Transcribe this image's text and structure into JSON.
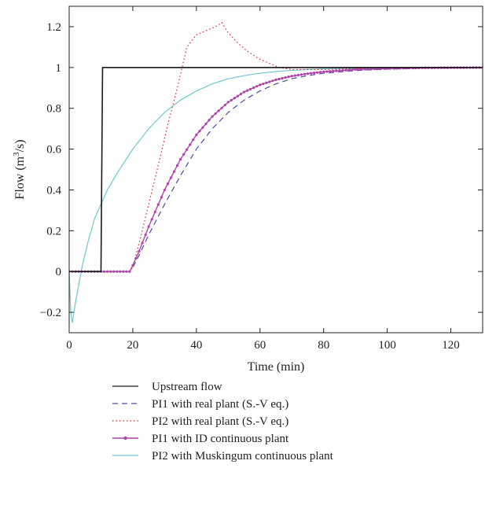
{
  "chart_data": {
    "type": "line",
    "title": "",
    "xlabel": "Time (min)",
    "ylabel_main": "Flow (m",
    "ylabel_sup": "3",
    "ylabel_end": "/s)",
    "xlim": [
      0,
      130
    ],
    "ylim": [
      -0.3,
      1.3
    ],
    "xticks": [
      0,
      20,
      40,
      60,
      80,
      100,
      120
    ],
    "yticks": [
      -0.2,
      0,
      0.2,
      0.4,
      0.6,
      0.8,
      1,
      1.2
    ],
    "xtick_labels": [
      "0",
      "20",
      "40",
      "60",
      "80",
      "100",
      "120"
    ],
    "ytick_labels": [
      "−0.2",
      "0",
      "0.2",
      "0.4",
      "0.6",
      "0.8",
      "1",
      "1.2"
    ],
    "grid": false,
    "legend_position": "below",
    "series": [
      {
        "name": "Upstream flow",
        "color": "#1a1a1a",
        "style": "solid",
        "x": [
          0,
          10,
          10.5,
          130
        ],
        "y": [
          0,
          0,
          1,
          1
        ]
      },
      {
        "name": "PI1 with real plant (S.-V eq.)",
        "color": "#4b4ba8",
        "style": "dashed",
        "x": [
          0,
          19,
          20,
          22,
          25,
          30,
          35,
          40,
          45,
          50,
          55,
          60,
          65,
          70,
          75,
          80,
          90,
          100,
          110,
          120,
          130
        ],
        "y": [
          0,
          0,
          0.02,
          0.08,
          0.18,
          0.33,
          0.47,
          0.6,
          0.7,
          0.78,
          0.84,
          0.885,
          0.92,
          0.945,
          0.96,
          0.972,
          0.985,
          0.992,
          0.996,
          0.998,
          0.999
        ]
      },
      {
        "name": "PI2 with real plant (S.-V eq.)",
        "color": "#e0282a",
        "style": "dotted",
        "x": [
          0,
          19,
          20,
          22,
          25,
          28,
          31,
          34,
          37,
          40,
          43,
          46,
          48,
          50,
          53,
          56,
          60,
          63,
          66,
          70,
          80,
          90,
          100,
          110,
          120,
          130
        ],
        "y": [
          0,
          0,
          0.02,
          0.14,
          0.33,
          0.52,
          0.72,
          0.9,
          1.1,
          1.16,
          1.18,
          1.2,
          1.22,
          1.17,
          1.12,
          1.08,
          1.04,
          1.02,
          1.0,
          0.99,
          0.99,
          0.995,
          0.998,
          0.999,
          1.0,
          1.0
        ]
      },
      {
        "name": "PI1 with ID continuous plant",
        "color": "#b044a8",
        "style": "solid-markers",
        "x": [
          0,
          19,
          20,
          22,
          25,
          30,
          35,
          40,
          45,
          50,
          55,
          60,
          65,
          70,
          75,
          80,
          90,
          100,
          110,
          120,
          130
        ],
        "y": [
          0,
          0,
          0.03,
          0.1,
          0.22,
          0.4,
          0.55,
          0.67,
          0.76,
          0.83,
          0.88,
          0.915,
          0.94,
          0.958,
          0.97,
          0.979,
          0.99,
          0.995,
          0.998,
          0.999,
          1.0
        ]
      },
      {
        "name": "PI2 with Muskingum continuous plant",
        "color": "#6ec8d2",
        "style": "solid",
        "x": [
          0,
          0.5,
          1,
          2,
          4,
          6,
          8,
          10,
          12,
          15,
          20,
          25,
          30,
          35,
          40,
          45,
          50,
          55,
          60,
          65,
          70,
          75,
          80,
          90,
          100,
          110,
          120,
          130
        ],
        "y": [
          0,
          -0.2,
          -0.25,
          -0.15,
          0.02,
          0.15,
          0.26,
          0.33,
          0.4,
          0.48,
          0.6,
          0.7,
          0.78,
          0.84,
          0.885,
          0.92,
          0.945,
          0.96,
          0.972,
          0.98,
          0.986,
          0.99,
          0.993,
          0.996,
          0.998,
          0.999,
          1.0,
          1.0
        ]
      }
    ]
  }
}
